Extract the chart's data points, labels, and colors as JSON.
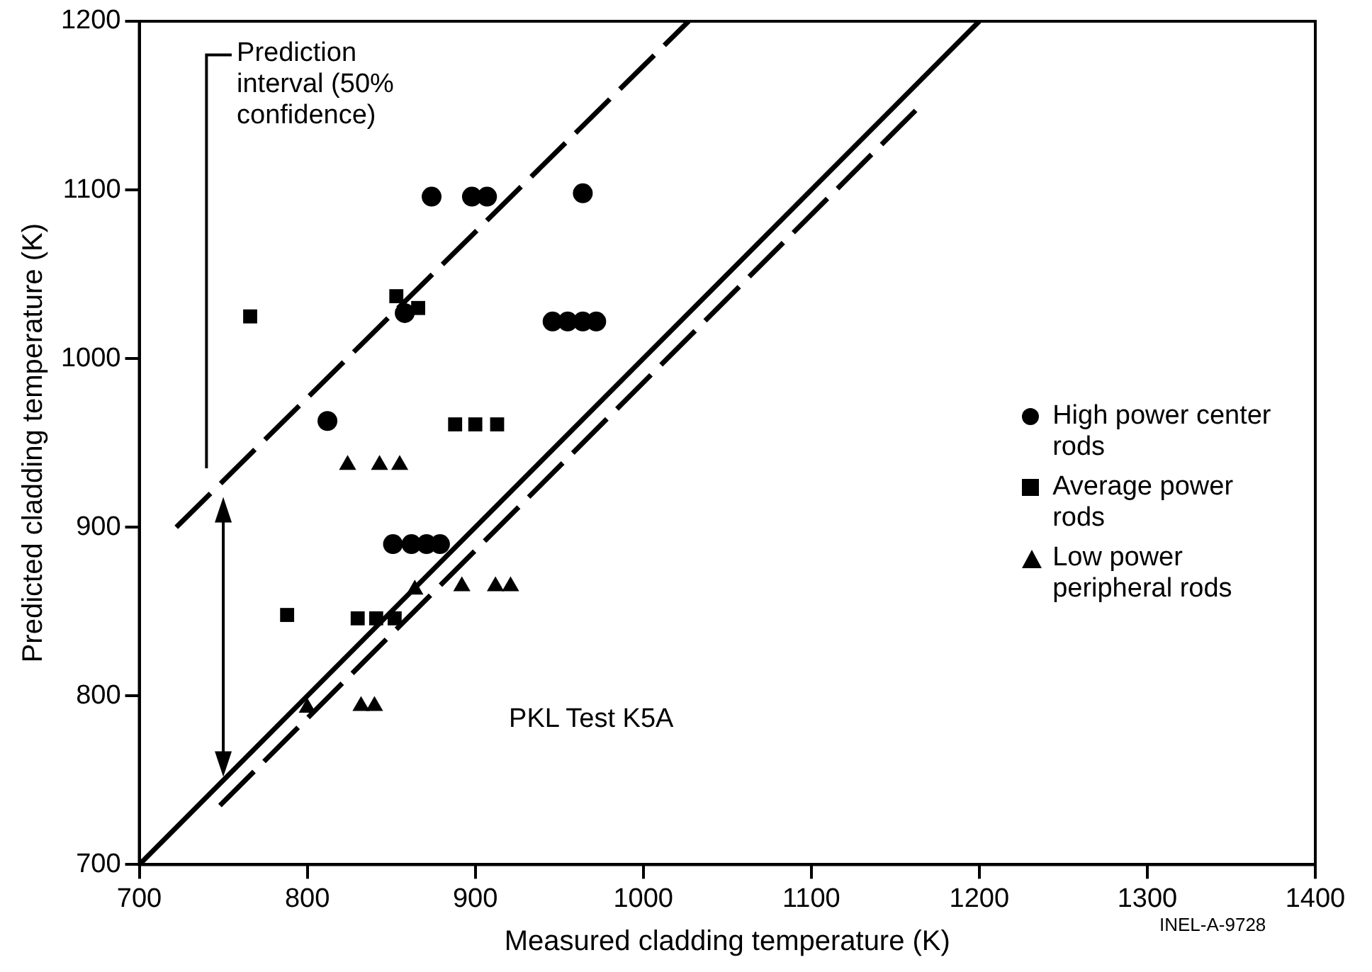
{
  "chart_data": {
    "type": "scatter",
    "xlabel": "Measured cladding temperature (K)",
    "ylabel": "Predicted cladding temperature (K)",
    "xlim": [
      700,
      1400
    ],
    "xticks": [
      700,
      800,
      900,
      1000,
      1100,
      1200,
      1300,
      1400
    ],
    "ylim": [
      700,
      1200
    ],
    "yticks": [
      700,
      800,
      900,
      1000,
      1100,
      1200
    ],
    "grid": false,
    "legend": "right",
    "annotations": [
      "Prediction interval (50% confidence)",
      "PKL Test K5A",
      "INEL-A-9728"
    ],
    "series": [
      {
        "name": "High power center rods",
        "type": "scatter",
        "marker": "circle",
        "color": "#000000",
        "x": [
          874,
          898,
          907,
          964,
          858,
          946,
          955,
          964,
          972,
          812,
          851,
          862,
          871,
          879
        ],
        "values": [
          1096,
          1096,
          1096,
          1098,
          1027,
          1022,
          1022,
          1022,
          1022,
          963,
          890,
          890,
          890,
          890
        ]
      },
      {
        "name": "Average power rods",
        "type": "scatter",
        "marker": "square",
        "color": "#000000",
        "x": [
          766,
          853,
          866,
          888,
          900,
          913,
          788,
          830,
          841,
          852
        ],
        "values": [
          1025,
          1037,
          1030,
          961,
          961,
          961,
          848,
          846,
          846,
          846
        ]
      },
      {
        "name": "Low power peripheral rods",
        "type": "scatter",
        "marker": "triangle",
        "color": "#000000",
        "x": [
          824,
          843,
          855,
          864,
          892,
          912,
          921,
          800,
          832,
          840
        ],
        "values": [
          937,
          937,
          937,
          863,
          865,
          865,
          865,
          793,
          794,
          794
        ]
      },
      {
        "type": "line",
        "marker": "none",
        "line_style": "solid",
        "color": "#000000",
        "x": [
          700,
          1200
        ],
        "values": [
          700,
          1200
        ]
      },
      {
        "type": "line",
        "marker": "none",
        "line_style": "dashed",
        "color": "#000000",
        "x": [
          722,
          1027
        ],
        "values": [
          900,
          1200
        ]
      },
      {
        "type": "line",
        "marker": "none",
        "line_style": "dashed",
        "color": "#000000",
        "x": [
          748,
          1165
        ],
        "values": [
          735,
          1150
        ]
      }
    ]
  }
}
